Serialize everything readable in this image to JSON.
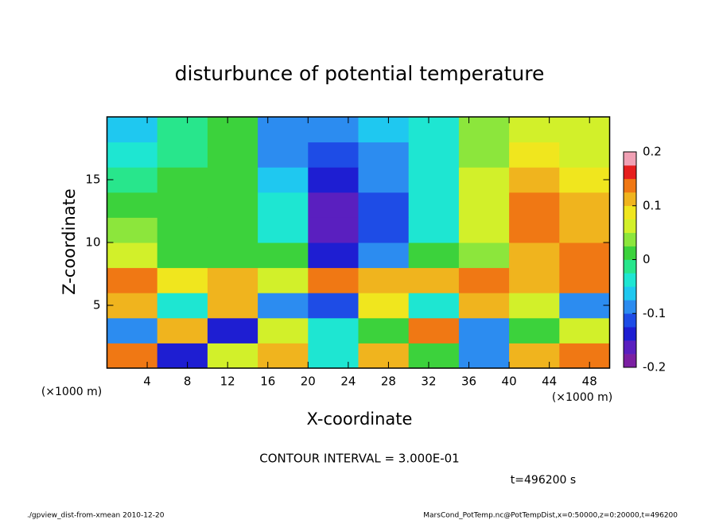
{
  "chart_data": {
    "type": "heatmap",
    "title": "disturbunce of potential temperature",
    "xlabel": "X-coordinate",
    "ylabel": "Z-coordinate",
    "x_unit_left": "(×1000 m)",
    "x_unit_right": "(×1000 m)",
    "contour_note": "CONTOUR INTERVAL = 3.000E-01",
    "time_note": "t=496200 s",
    "footer_left": "./gpview_dist-from-xmean  2010-12-20",
    "footer_right": "MarsCond_PotTemp.nc@PotTempDist,x=0:50000,z=0:20000,t=496200",
    "xlim": [
      0,
      50
    ],
    "xticks": [
      4,
      8,
      12,
      16,
      20,
      24,
      28,
      32,
      36,
      40,
      44,
      48
    ],
    "ylim": [
      0,
      20
    ],
    "yticks": [
      5,
      10,
      15
    ],
    "xbins": [
      0,
      5,
      10,
      15,
      20,
      25,
      30,
      35,
      40,
      45,
      50
    ],
    "ybins": [
      0,
      2,
      4,
      6,
      8,
      10,
      12,
      14,
      16,
      18,
      20
    ],
    "values": [
      [
        0.15,
        -0.15,
        0.05,
        0.1,
        -0.05,
        0.12,
        0.0,
        -0.1,
        0.1,
        0.15
      ],
      [
        -0.1,
        0.1,
        -0.15,
        0.05,
        -0.05,
        0.02,
        0.15,
        -0.08,
        0.0,
        0.05
      ],
      [
        0.1,
        -0.05,
        0.12,
        -0.1,
        -0.12,
        0.08,
        -0.05,
        0.1,
        0.05,
        -0.1
      ],
      [
        0.13,
        0.08,
        0.1,
        0.05,
        0.15,
        0.12,
        0.1,
        0.14,
        0.12,
        0.13
      ],
      [
        0.05,
        0.0,
        0.0,
        0.02,
        -0.15,
        -0.1,
        0.0,
        0.03,
        0.12,
        0.14
      ],
      [
        0.03,
        0.01,
        0.01,
        -0.03,
        -0.17,
        -0.12,
        -0.03,
        0.05,
        0.13,
        0.12
      ],
      [
        0.0,
        0.01,
        0.01,
        -0.05,
        -0.16,
        -0.12,
        -0.05,
        0.06,
        0.14,
        0.1
      ],
      [
        -0.02,
        0.0,
        0.02,
        -0.07,
        -0.14,
        -0.1,
        -0.05,
        0.05,
        0.12,
        0.08
      ],
      [
        -0.05,
        -0.01,
        0.01,
        -0.08,
        -0.12,
        -0.08,
        -0.04,
        0.04,
        0.09,
        0.06
      ],
      [
        -0.06,
        -0.02,
        0.0,
        -0.08,
        -0.1,
        -0.06,
        -0.03,
        0.03,
        0.07,
        0.05
      ]
    ],
    "clim": [
      -0.2,
      0.2
    ],
    "cticks": [
      -0.2,
      -0.1,
      0,
      0.1,
      0.2
    ],
    "colors": [
      "#7b1fa2",
      "#5a1fbf",
      "#1e1ed2",
      "#1e4ce6",
      "#2c8cf0",
      "#1fc8f0",
      "#1ee6d2",
      "#28e68c",
      "#3cd23c",
      "#8ce63c",
      "#d2f02a",
      "#f0e61e",
      "#f0b41e",
      "#f07814",
      "#e61e1e",
      "#f0a0b4"
    ]
  }
}
